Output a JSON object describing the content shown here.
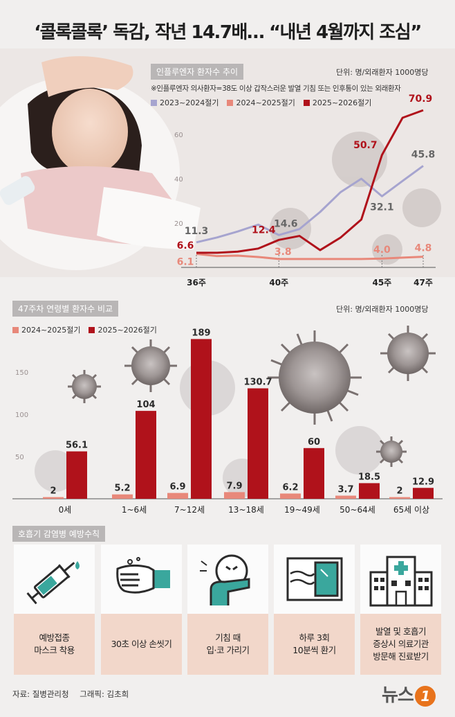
{
  "title": "‘콜록콜록’ 독감, 작년 14.7배… “내년 4월까지 조심”",
  "colors": {
    "s2023": "#a6a4cf",
    "s2024": "#e8887a",
    "s2025": "#b0121b",
    "accent": "#e8731c"
  },
  "chart_data": [
    {
      "type": "line",
      "title": "인플루엔자 환자수 추이",
      "unit": "단위: 명/외래환자 1000명당",
      "note": "※인플루엔자 의사환자=38도 이상 갑작스러운 발열 기침 또는 인후통이 있는 외래환자",
      "x_ticks": [
        "36주",
        "40주",
        "45주",
        "47주"
      ],
      "y_ticks": [
        "20",
        "40",
        "60"
      ],
      "x": [
        36,
        37,
        38,
        39,
        40,
        41,
        42,
        43,
        44,
        45,
        46,
        47
      ],
      "ylim": [
        0,
        80
      ],
      "series": [
        {
          "name": "2023~2024절기",
          "values": [
            11.3,
            13.5,
            16.2,
            19.3,
            14.6,
            17.3,
            25,
            34,
            40,
            32.1,
            39,
            45.8
          ]
        },
        {
          "name": "2024~2025절기",
          "values": [
            6.1,
            5.1,
            5.3,
            4.7,
            3.8,
            3.8,
            3.8,
            3.8,
            3.8,
            4.0,
            4.4,
            4.8
          ]
        },
        {
          "name": "2025~2026절기",
          "values": [
            6.6,
            6.6,
            7.1,
            8.5,
            12.4,
            14.2,
            7.8,
            13.5,
            21.6,
            50.7,
            67.5,
            70.9
          ]
        }
      ],
      "labels": [
        {
          "series": 0,
          "index": 0,
          "text": "11.3"
        },
        {
          "series": 0,
          "index": 4,
          "text": "14.6"
        },
        {
          "series": 0,
          "index": 9,
          "text": "32.1"
        },
        {
          "series": 0,
          "index": 11,
          "text": "45.8"
        },
        {
          "series": 1,
          "index": 0,
          "text": "6.1"
        },
        {
          "series": 1,
          "index": 4,
          "text": "3.8"
        },
        {
          "series": 1,
          "index": 9,
          "text": "4.0"
        },
        {
          "series": 1,
          "index": 11,
          "text": "4.8"
        },
        {
          "series": 2,
          "index": 0,
          "text": "6.6"
        },
        {
          "series": 2,
          "index": 4,
          "text": "12.4"
        },
        {
          "series": 2,
          "index": 9,
          "text": "50.7"
        },
        {
          "series": 2,
          "index": 11,
          "text": "70.9"
        }
      ]
    },
    {
      "type": "bar",
      "title": "47주차 연령별 환자수 비교",
      "unit": "단위: 명/외래환자 1000명당",
      "categories": [
        "0세",
        "1~6세",
        "7~12세",
        "13~18세",
        "19~49세",
        "50~64세",
        "65세 이상"
      ],
      "y_ticks": [
        "50",
        "100",
        "150"
      ],
      "ylim": [
        0,
        200
      ],
      "series": [
        {
          "name": "2024~2025절기",
          "values": [
            2,
            5.2,
            6.9,
            7.9,
            6.2,
            3.7,
            2
          ],
          "labels": [
            "2",
            "5.2",
            "6.9",
            "7.9",
            "6.2",
            "3.7",
            "2"
          ]
        },
        {
          "name": "2025~2026절기",
          "values": [
            56.1,
            104,
            189,
            130.7,
            60,
            18.5,
            12.9
          ],
          "labels": [
            "56.1",
            "104",
            "189",
            "130.7",
            "60",
            "18.5",
            "12.9"
          ]
        }
      ]
    }
  ],
  "prevention": {
    "title": "호흡기 감염병 예방수칙",
    "items": [
      {
        "icon": "syringe-icon",
        "text": "예방접종\n마스크 착용"
      },
      {
        "icon": "hand-washing-icon",
        "text": "30초 이상 손씻기"
      },
      {
        "icon": "cough-cover-icon",
        "text": "기침 때\n입·코 가리기"
      },
      {
        "icon": "window-ventilation-icon",
        "text": "하루 3회\n10분씩 환기"
      },
      {
        "icon": "hospital-icon",
        "text": "발열 및 호흡기\n증상시 의료기관\n방문해 진료받기"
      }
    ]
  },
  "footer": {
    "source": "자료: 질병관리청",
    "graphic": "그래픽: 김초희"
  },
  "logo": {
    "text": "뉴스",
    "mark": "1"
  }
}
